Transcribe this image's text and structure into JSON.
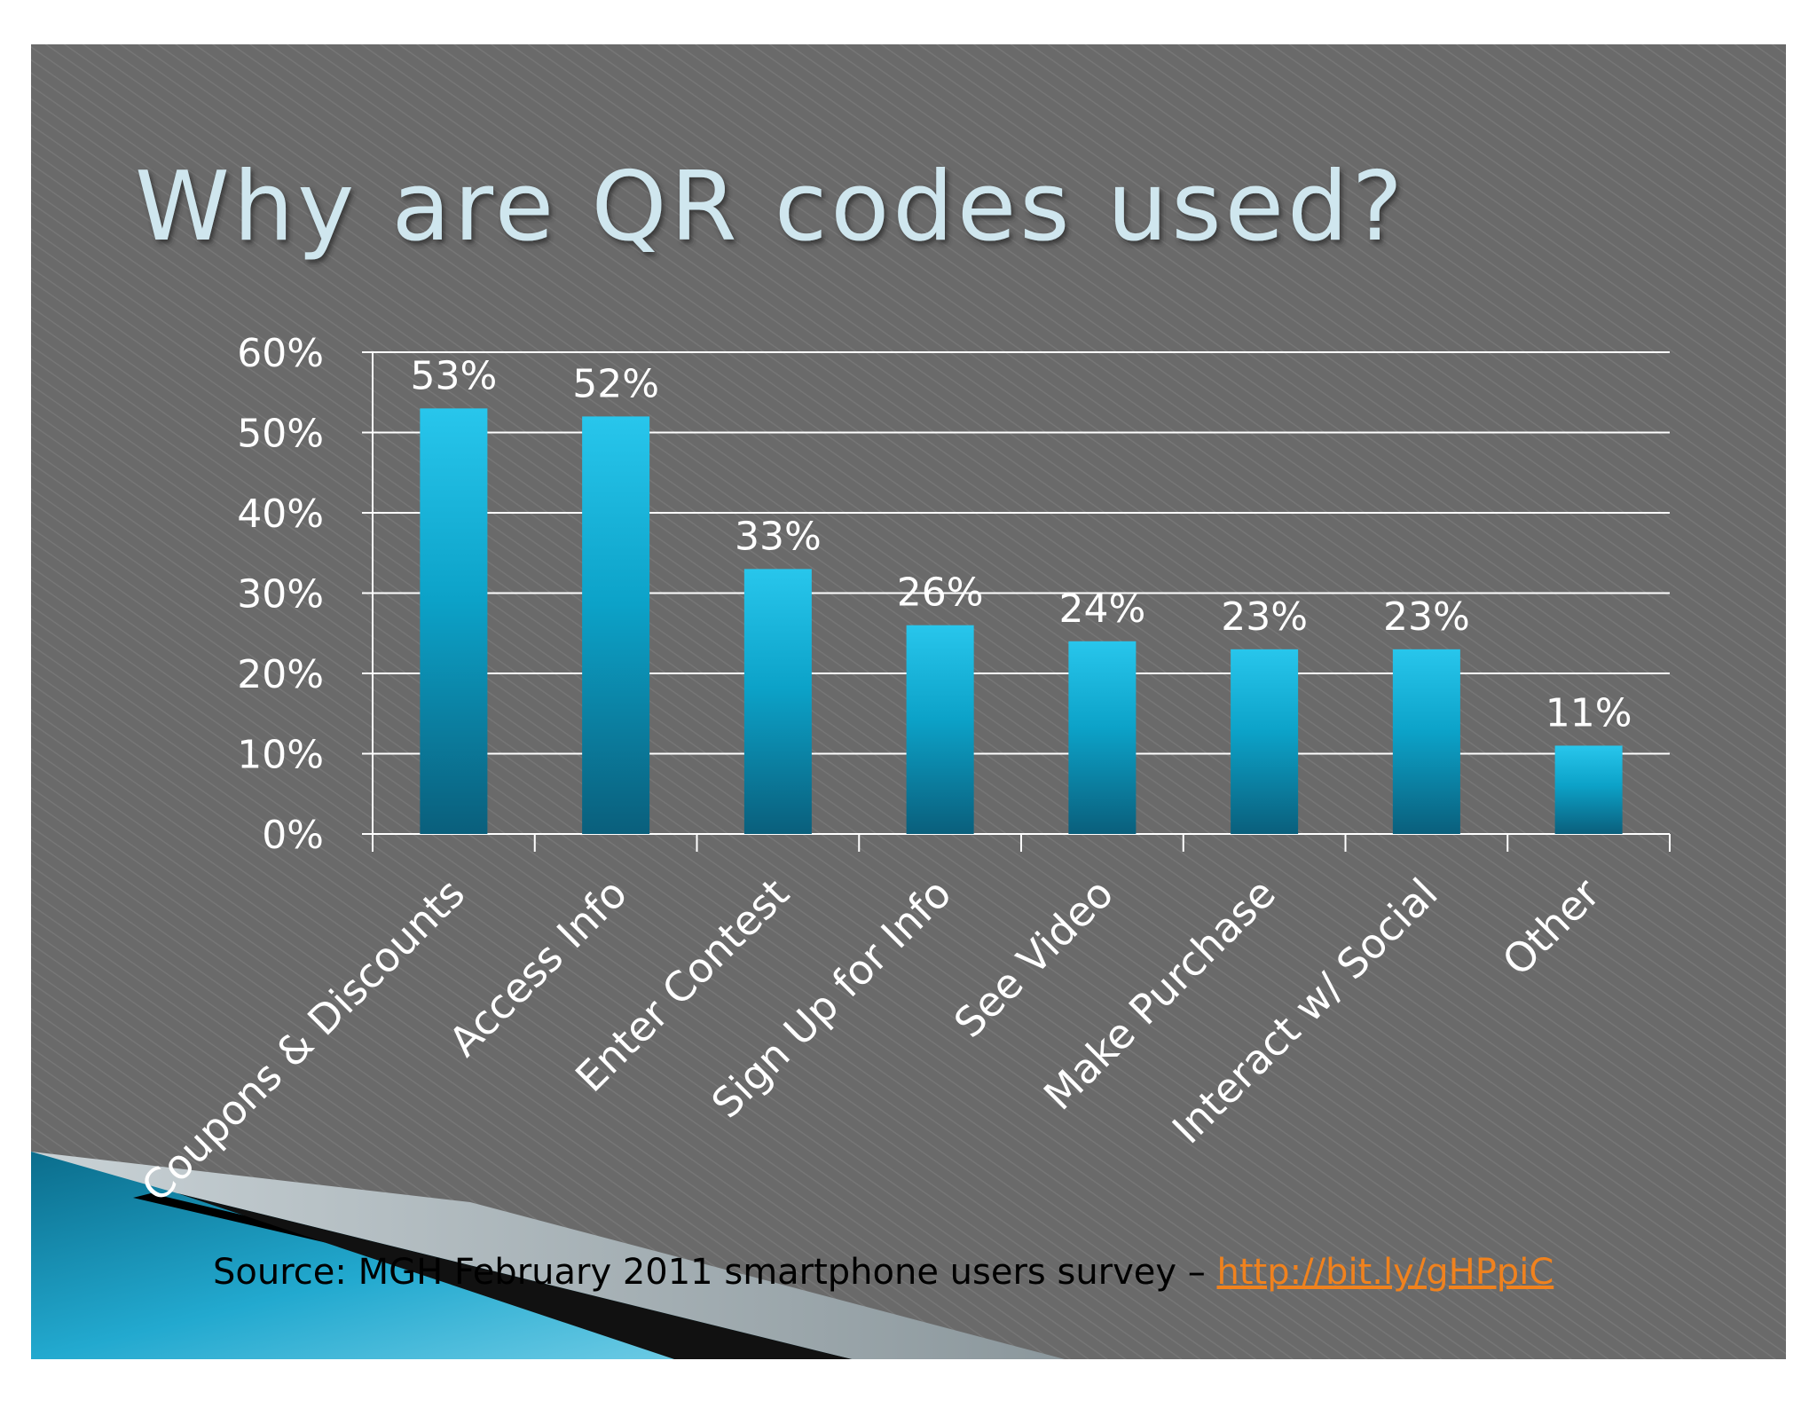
{
  "slide": {
    "title": "Why are QR codes used?",
    "source_text": "Source: MGH February 2011 smartphone users survey – ",
    "source_link": "http://bit.ly/gHPpiC"
  },
  "colors": {
    "background": "#6b6b6b",
    "bar_top": "#28c6ec",
    "bar_bottom": "#0a5f7c",
    "grid": "#ffffff",
    "text": "#ffffff",
    "title": "#cfe6ee",
    "source_text": "#000000",
    "link": "#f0821e",
    "accent": "#1a9bc0"
  },
  "chart_data": {
    "type": "bar",
    "categories": [
      "Coupons & Discounts",
      "Access Info",
      "Enter Contest",
      "Sign Up for Info",
      "See Video",
      "Make Purchase",
      "Interact w/ Social",
      "Other"
    ],
    "values": [
      53,
      52,
      33,
      26,
      24,
      23,
      23,
      11
    ],
    "value_labels": [
      "53%",
      "52%",
      "33%",
      "26%",
      "24%",
      "23%",
      "23%",
      "11%"
    ],
    "ylim": [
      0,
      60
    ],
    "yticks": [
      0,
      10,
      20,
      30,
      40,
      50,
      60
    ],
    "ytick_labels": [
      "0%",
      "10%",
      "20%",
      "30%",
      "40%",
      "50%",
      "60%"
    ],
    "grid": true,
    "xlabel": "",
    "ylabel": ""
  }
}
